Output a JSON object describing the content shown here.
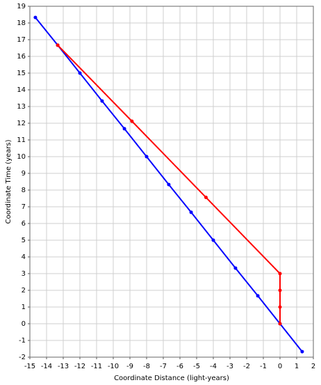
{
  "chart_data": {
    "type": "line",
    "xlabel": "Coordinate Distance (light-years)",
    "ylabel": "Coordinate Time (years)",
    "xlim": [
      -15,
      2
    ],
    "ylim": [
      -2,
      19
    ],
    "xticks": [
      -15,
      -14,
      -13,
      -12,
      -11,
      -10,
      -9,
      -8,
      -7,
      -6,
      -5,
      -4,
      -3,
      -2,
      -1,
      0,
      1,
      2
    ],
    "yticks": [
      -2,
      -1,
      0,
      1,
      2,
      3,
      4,
      5,
      6,
      7,
      8,
      9,
      10,
      11,
      12,
      13,
      14,
      15,
      16,
      17,
      18,
      19
    ],
    "grid": true,
    "series": [
      {
        "color": "#0000ff",
        "x": [
          -14.67,
          -13.33,
          -12,
          -10.67,
          -9.33,
          -8,
          -6.67,
          -5.33,
          -4,
          -2.67,
          -1.33,
          0,
          1.33
        ],
        "values": [
          18.33,
          16.67,
          15,
          13.33,
          11.67,
          10,
          8.33,
          6.67,
          5,
          3.33,
          1.67,
          0,
          -1.67
        ]
      },
      {
        "color": "#ff0000",
        "x": [
          -13.33,
          -8.88,
          -4.44,
          0,
          0,
          0,
          0
        ],
        "values": [
          16.67,
          12.12,
          7.56,
          3,
          2,
          1,
          0
        ]
      }
    ]
  }
}
